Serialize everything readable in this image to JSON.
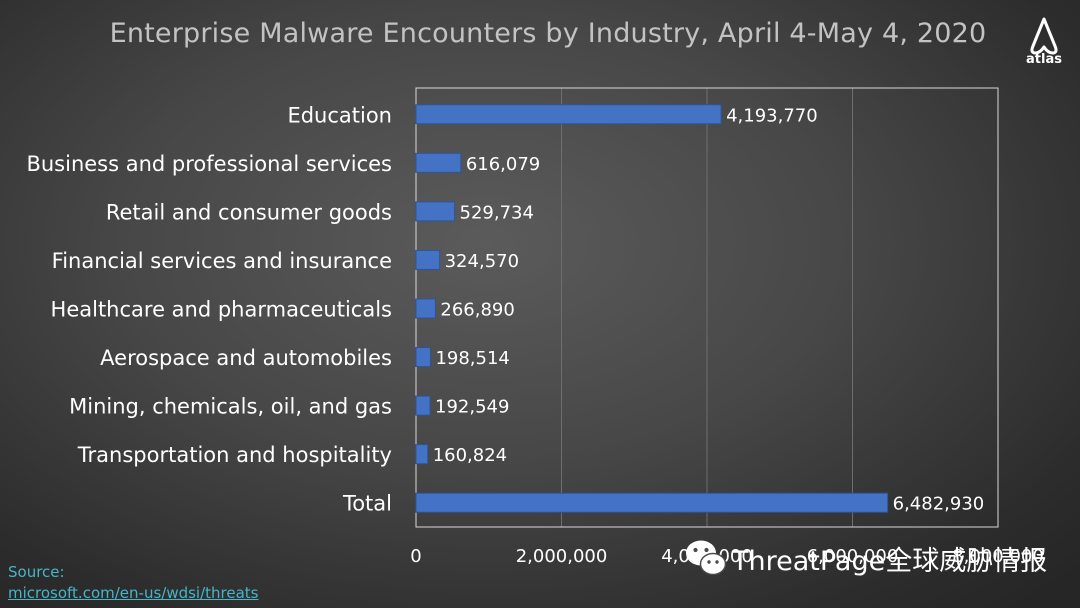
{
  "chart_data": {
    "type": "bar",
    "orientation": "horizontal",
    "title": "Enterprise  Malware Encounters  by Industry,  April 4-May 4, 2020",
    "categories": [
      "Education",
      "Business and professional services",
      "Retail and consumer goods",
      "Financial services and insurance",
      "Healthcare and pharmaceuticals",
      "Aerospace and automobiles",
      "Mining, chemicals, oil, and gas",
      "Transportation and hospitality",
      "Total"
    ],
    "values": [
      4193770,
      616079,
      529734,
      324570,
      266890,
      198514,
      192549,
      160824,
      6482930
    ],
    "data_labels": [
      "4,193,770",
      "616,079",
      "529,734",
      "324,570",
      "266,890",
      "198,514",
      "192,549",
      "160,824",
      "6,482,930"
    ],
    "xlim": [
      0,
      8000000
    ],
    "x_ticks": [
      0,
      2000000,
      4000000,
      6000000,
      8000000
    ],
    "x_tick_labels": [
      "0",
      "2,000,000",
      "4,000,000",
      "6,000,000",
      "8,000,000"
    ],
    "xlabel": "",
    "ylabel": "",
    "grid": true,
    "legend": "none",
    "colors": {
      "bar_fill": "#4472c4",
      "bar_edge": "#2f5597",
      "text": "#ffffff",
      "gridline": "#6e6e6e",
      "plot_border": "#d9d9d9",
      "title": "#c3c3c3"
    }
  },
  "logo": {
    "text": "atlas",
    "icon": "atlas-logo-icon"
  },
  "source": {
    "label": "Source:",
    "url": "microsoft.com/en-us/wdsi/threats"
  },
  "watermark": {
    "text": "ThreatPage全球威胁情报",
    "icon": "wechat-icon"
  }
}
